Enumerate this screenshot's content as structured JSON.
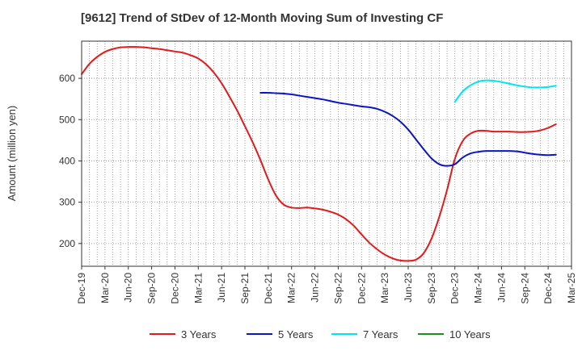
{
  "chart_data": {
    "type": "line",
    "title": "[9612]  Trend of StDev of 12-Month Moving Sum of Investing CF",
    "xlabel": "",
    "ylabel": "Amount (million yen)",
    "ylim": [
      145,
      690
    ],
    "yticks": [
      200,
      300,
      400,
      500,
      600
    ],
    "x_range": [
      "2019-12",
      "2025-03"
    ],
    "x_ticks": [
      "Dec-19",
      "Mar-20",
      "Jun-20",
      "Sep-20",
      "Dec-20",
      "Mar-21",
      "Jun-21",
      "Sep-21",
      "Dec-21",
      "Mar-22",
      "Jun-22",
      "Sep-22",
      "Dec-22",
      "Mar-23",
      "Jun-23",
      "Sep-23",
      "Dec-23",
      "Mar-24",
      "Jun-24",
      "Sep-24",
      "Dec-24",
      "Mar-25"
    ],
    "grid": true,
    "legend_position": "bottom",
    "series": [
      {
        "name": "3 Years",
        "color": "#e31a1c",
        "points": [
          [
            "2019-12",
            610
          ],
          [
            "2020-01",
            635
          ],
          [
            "2020-02",
            652
          ],
          [
            "2020-03",
            664
          ],
          [
            "2020-04",
            671
          ],
          [
            "2020-05",
            675
          ],
          [
            "2020-06",
            676
          ],
          [
            "2020-07",
            676
          ],
          [
            "2020-08",
            675
          ],
          [
            "2020-09",
            673
          ],
          [
            "2020-10",
            671
          ],
          [
            "2020-11",
            668
          ],
          [
            "2020-12",
            665
          ],
          [
            "2021-01",
            662
          ],
          [
            "2021-02",
            656
          ],
          [
            "2021-03",
            648
          ],
          [
            "2021-04",
            634
          ],
          [
            "2021-05",
            614
          ],
          [
            "2021-06",
            588
          ],
          [
            "2021-07",
            556
          ],
          [
            "2021-08",
            522
          ],
          [
            "2021-09",
            484
          ],
          [
            "2021-10",
            445
          ],
          [
            "2021-11",
            402
          ],
          [
            "2021-12",
            355
          ],
          [
            "2022-01",
            316
          ],
          [
            "2022-02",
            294
          ],
          [
            "2022-03",
            287
          ],
          [
            "2022-04",
            286
          ],
          [
            "2022-05",
            287
          ],
          [
            "2022-06",
            285
          ],
          [
            "2022-07",
            282
          ],
          [
            "2022-08",
            277
          ],
          [
            "2022-09",
            270
          ],
          [
            "2022-10",
            259
          ],
          [
            "2022-11",
            243
          ],
          [
            "2022-12",
            222
          ],
          [
            "2023-01",
            202
          ],
          [
            "2023-02",
            186
          ],
          [
            "2023-03",
            173
          ],
          [
            "2023-04",
            164
          ],
          [
            "2023-05",
            159
          ],
          [
            "2023-06",
            158
          ],
          [
            "2023-07",
            161
          ],
          [
            "2023-08",
            177
          ],
          [
            "2023-09",
            212
          ],
          [
            "2023-10",
            265
          ],
          [
            "2023-11",
            330
          ],
          [
            "2023-12",
            405
          ],
          [
            "2024-01",
            448
          ],
          [
            "2024-02",
            466
          ],
          [
            "2024-03",
            473
          ],
          [
            "2024-04",
            473
          ],
          [
            "2024-05",
            471
          ],
          [
            "2024-06",
            471
          ],
          [
            "2024-07",
            471
          ],
          [
            "2024-08",
            470
          ],
          [
            "2024-09",
            470
          ],
          [
            "2024-10",
            471
          ],
          [
            "2024-11",
            474
          ],
          [
            "2024-12",
            480
          ],
          [
            "2025-01",
            489
          ]
        ]
      },
      {
        "name": "5 Years",
        "color": "#0a14c8",
        "points": [
          [
            "2021-11",
            565
          ],
          [
            "2021-12",
            565
          ],
          [
            "2022-01",
            564
          ],
          [
            "2022-02",
            563
          ],
          [
            "2022-03",
            561
          ],
          [
            "2022-04",
            558
          ],
          [
            "2022-05",
            555
          ],
          [
            "2022-06",
            552
          ],
          [
            "2022-07",
            549
          ],
          [
            "2022-08",
            545
          ],
          [
            "2022-09",
            541
          ],
          [
            "2022-10",
            538
          ],
          [
            "2022-11",
            535
          ],
          [
            "2022-12",
            532
          ],
          [
            "2023-01",
            530
          ],
          [
            "2023-02",
            526
          ],
          [
            "2023-03",
            519
          ],
          [
            "2023-04",
            509
          ],
          [
            "2023-05",
            495
          ],
          [
            "2023-06",
            476
          ],
          [
            "2023-07",
            452
          ],
          [
            "2023-08",
            428
          ],
          [
            "2023-09",
            406
          ],
          [
            "2023-10",
            392
          ],
          [
            "2023-11",
            388
          ],
          [
            "2023-12",
            392
          ],
          [
            "2024-01",
            408
          ],
          [
            "2024-02",
            418
          ],
          [
            "2024-03",
            422
          ],
          [
            "2024-04",
            424
          ],
          [
            "2024-05",
            424
          ],
          [
            "2024-06",
            424
          ],
          [
            "2024-07",
            424
          ],
          [
            "2024-08",
            423
          ],
          [
            "2024-09",
            420
          ],
          [
            "2024-10",
            417
          ],
          [
            "2024-11",
            415
          ],
          [
            "2024-12",
            414
          ],
          [
            "2025-01",
            415
          ]
        ]
      },
      {
        "name": "7 Years",
        "color": "#00e5ee",
        "points": [
          [
            "2023-12",
            543
          ],
          [
            "2024-01",
            568
          ],
          [
            "2024-02",
            583
          ],
          [
            "2024-03",
            592
          ],
          [
            "2024-04",
            595
          ],
          [
            "2024-05",
            594
          ],
          [
            "2024-06",
            591
          ],
          [
            "2024-07",
            587
          ],
          [
            "2024-08",
            583
          ],
          [
            "2024-09",
            580
          ],
          [
            "2024-10",
            578
          ],
          [
            "2024-11",
            578
          ],
          [
            "2024-12",
            579
          ],
          [
            "2025-01",
            582
          ]
        ]
      },
      {
        "name": "10 Years",
        "color": "#1e8c1e",
        "points": []
      }
    ]
  }
}
